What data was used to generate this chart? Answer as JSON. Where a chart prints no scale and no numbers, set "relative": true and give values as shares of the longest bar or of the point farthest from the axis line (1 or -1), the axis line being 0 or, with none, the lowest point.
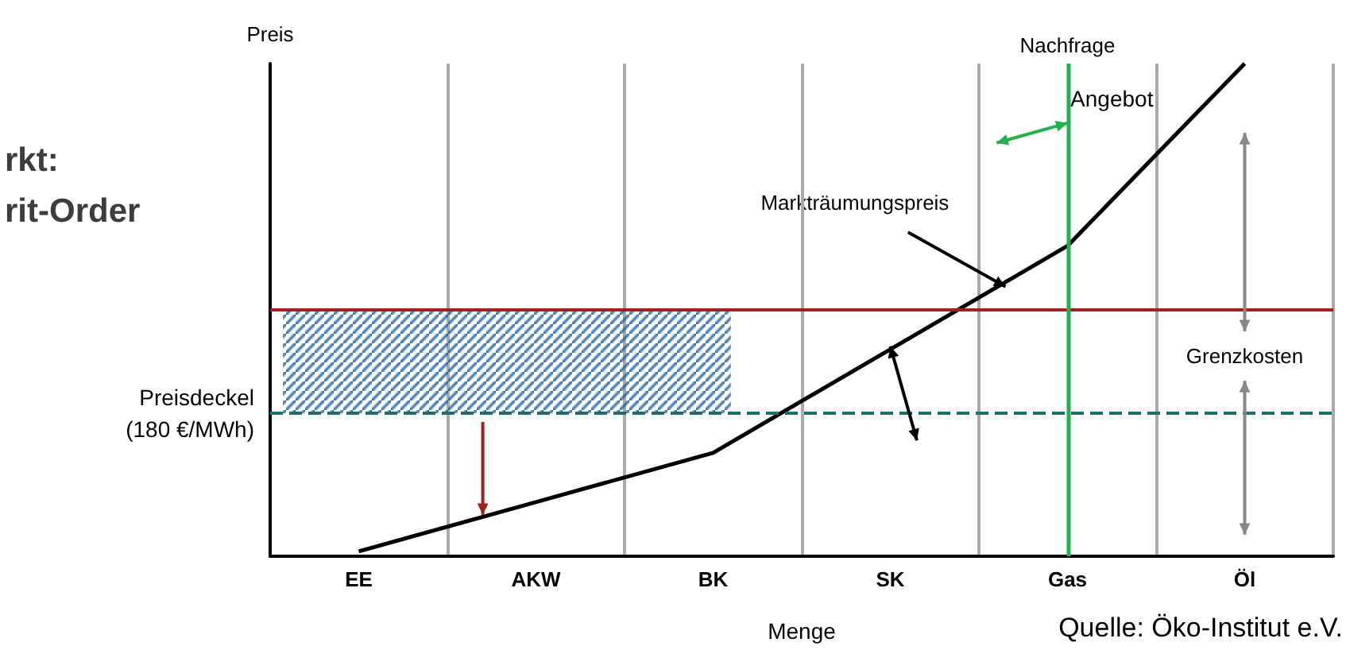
{
  "chart_data": {
    "type": "line",
    "title": "rkt:\nrit-Order",
    "xlabel": "Menge",
    "ylabel": "Preis",
    "relative": true,
    "categories": [
      "EE",
      "AKW",
      "BK",
      "SK",
      "Gas",
      "Öl"
    ],
    "series": [
      {
        "name": "Angebot",
        "color": "#000000",
        "values": [
          0.01,
          0.11,
          0.21,
          0.42,
          0.63,
          1
        ]
      }
    ],
    "ref_lines": [
      {
        "axis": "y",
        "value": 0.5,
        "label": null,
        "color": "#a32020",
        "line_style": "solid"
      },
      {
        "axis": "y",
        "value": 0.29,
        "label": "Preisdeckel\n(180 €/MWh)",
        "color": "#1f6f6f",
        "line_style": "dashed"
      },
      {
        "axis": "x",
        "value": "Gas",
        "label": "Nachfrage",
        "color": "#22b14c",
        "line_style": "solid"
      }
    ],
    "bands": [
      {
        "axis": "y",
        "from": 0.29,
        "to": 0.5,
        "color": "#1f5f9f"
      }
    ],
    "annotations": [
      "Markträumungspreis",
      "Grenzkosten",
      "Quelle: Öko-Institut e.V."
    ],
    "grid": "x",
    "legend": false,
    "marker": "none",
    "line_style": "solid"
  }
}
